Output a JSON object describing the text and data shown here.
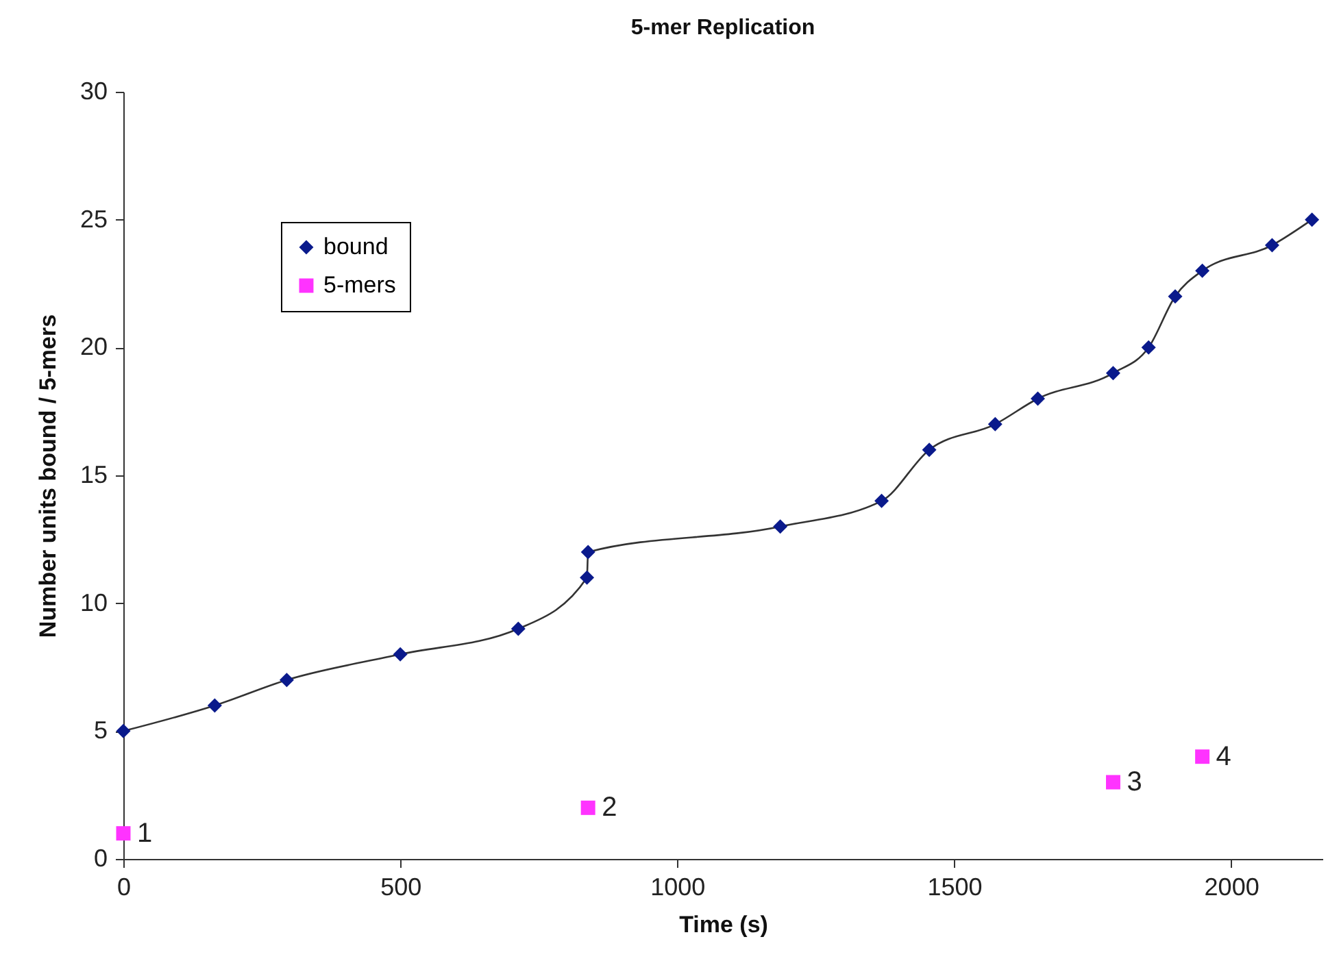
{
  "chart_data": {
    "type": "line",
    "title": "5-mer Replication",
    "xlabel": "Time (s)",
    "ylabel": "Number units bound / 5-mers",
    "xlim": [
      0,
      2165
    ],
    "xticks": [
      0,
      500,
      1000,
      1500,
      2000
    ],
    "ylim": [
      0,
      30
    ],
    "yticks": [
      0,
      5,
      10,
      15,
      20,
      25,
      30
    ],
    "grid": false,
    "legend": "top left",
    "series": [
      {
        "name": "bound",
        "type": "line",
        "marker": "diamond",
        "color": "#0a1a8c",
        "x": [
          0,
          165,
          295,
          500,
          713,
          837,
          839,
          1186,
          1369,
          1455,
          1574,
          1651,
          1787,
          1851,
          1899,
          1948,
          2074,
          2146
        ],
        "values": [
          5,
          6,
          7,
          8,
          9,
          11,
          12,
          13,
          14,
          16,
          17,
          18,
          19,
          20,
          22,
          23,
          24,
          25
        ]
      },
      {
        "name": "5-mers",
        "type": "scatter",
        "marker": "square",
        "color": "#ff33ff",
        "x": [
          0,
          839,
          1787,
          1948
        ],
        "values": [
          1,
          2,
          3,
          4
        ],
        "value_labels": [
          "1",
          "2",
          "3",
          "4"
        ]
      }
    ]
  }
}
